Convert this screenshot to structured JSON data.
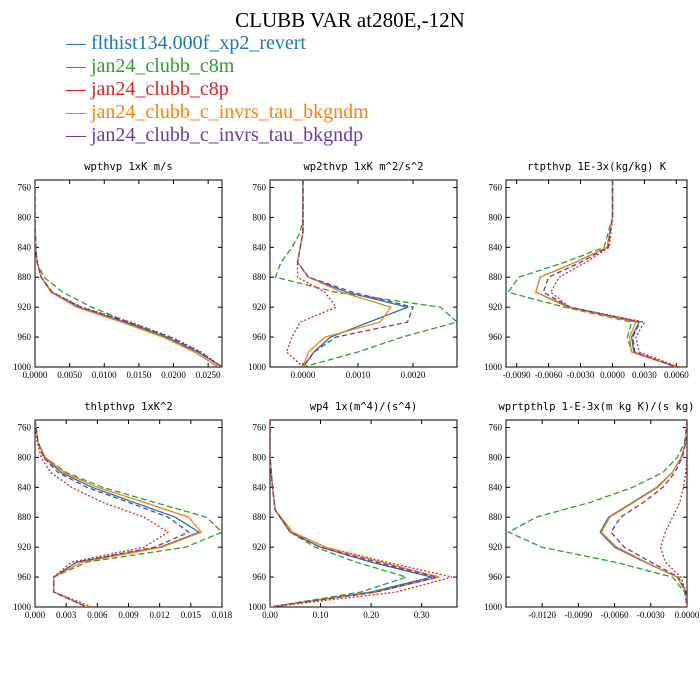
{
  "title": "CLUBB VAR at280E,-12N",
  "legend": [
    {
      "label": "flthist134.000f_xp2_revert",
      "color": "#1f77b4",
      "dash": ""
    },
    {
      "label": "jan24_clubb_c8m",
      "color": "#2ca02c",
      "dash": "6,3"
    },
    {
      "label": "jan24_clubb_c8p",
      "color": "#d62728",
      "dash": "2,2"
    },
    {
      "label": "jan24_clubb_c_invrs_tau_bkgndm",
      "color": "#ff7f0e",
      "dash": ""
    },
    {
      "label": "jan24_clubb_c_invrs_tau_bkgndp",
      "color": "#6a3d9a",
      "dash": "5,3"
    }
  ],
  "chart_data": [
    {
      "type": "line",
      "title": "wpthvp  1xK m/s",
      "xlim": [
        0,
        0.027
      ],
      "ylim": [
        1000,
        750
      ],
      "xticks": [
        0,
        0.005,
        0.01,
        0.015,
        0.02,
        0.025
      ],
      "xtick_labels": [
        "0.0000",
        "0.0050",
        "0.0100",
        "0.0150",
        "0.0200",
        "0.0250"
      ],
      "yticks": [
        760,
        800,
        840,
        880,
        920,
        960,
        1000
      ],
      "y": [
        750,
        800,
        840,
        860,
        880,
        900,
        920,
        940,
        960,
        980,
        1000
      ],
      "series": [
        {
          "x": [
            0,
            0,
            0.0001,
            0.0003,
            0.0009,
            0.0024,
            0.0064,
            0.013,
            0.019,
            0.0235,
            0.027
          ]
        },
        {
          "x": [
            0,
            0,
            0.0001,
            0.0003,
            0.0013,
            0.004,
            0.0082,
            0.0135,
            0.0188,
            0.023,
            0.0265
          ]
        },
        {
          "x": [
            0,
            0,
            0.0001,
            0.0003,
            0.0009,
            0.0025,
            0.0068,
            0.0138,
            0.0197,
            0.024,
            0.027
          ]
        },
        {
          "x": [
            0,
            0,
            0.0001,
            0.0003,
            0.0009,
            0.0023,
            0.006,
            0.0125,
            0.0185,
            0.023,
            0.0265
          ]
        },
        {
          "x": [
            0,
            0,
            0.0001,
            0.0003,
            0.0009,
            0.0025,
            0.0066,
            0.0135,
            0.0195,
            0.0238,
            0.027
          ]
        }
      ]
    },
    {
      "type": "line",
      "title": "wp2thvp  1xK m^2/s^2",
      "xlim": [
        -0.0006,
        0.0028
      ],
      "ylim": [
        1000,
        750
      ],
      "xticks": [
        0,
        0.001,
        0.002
      ],
      "xtick_labels": [
        "0.0000",
        "0.0010",
        "0.0020"
      ],
      "yticks": [
        760,
        800,
        840,
        880,
        920,
        960,
        1000
      ],
      "y": [
        750,
        800,
        820,
        840,
        860,
        880,
        900,
        920,
        940,
        960,
        980,
        1000
      ],
      "series": [
        {
          "x": [
            0,
            0,
            0,
            -5e-05,
            -0.0001,
            0.0001,
            0.0008,
            0.0019,
            0.0012,
            0.0005,
            0.0002,
            0
          ]
        },
        {
          "x": [
            0,
            0,
            -5e-05,
            -0.0002,
            -0.0004,
            -0.0005,
            0.0006,
            0.0025,
            0.0028,
            0.0018,
            0.001,
            0
          ]
        },
        {
          "x": [
            0,
            0,
            0,
            -5e-05,
            -0.0001,
            -0.0001,
            0.0004,
            0.0006,
            -5e-05,
            -0.0002,
            -0.0003,
            0
          ]
        },
        {
          "x": [
            0,
            0,
            0,
            -5e-05,
            -0.0001,
            0.0001,
            0.0007,
            0.0016,
            0.0014,
            0.0004,
            0.0001,
            0
          ]
        },
        {
          "x": [
            0,
            0,
            0,
            -5e-05,
            -0.0001,
            0.0001,
            0.0009,
            0.002,
            0.0019,
            0.0006,
            0.0002,
            0
          ]
        }
      ]
    },
    {
      "type": "line",
      "title": "rtpthvp  1E-3x(kg/kg) K",
      "xlim": [
        -0.01,
        0.007
      ],
      "ylim": [
        1000,
        750
      ],
      "xticks": [
        -0.009,
        -0.006,
        -0.003,
        0,
        0.003,
        0.006
      ],
      "xtick_labels": [
        "-0.0090",
        "-0.0060",
        "-0.0030",
        "0.0000",
        "0.0030",
        "0.0060"
      ],
      "yticks": [
        760,
        800,
        840,
        880,
        920,
        960,
        1000
      ],
      "y": [
        750,
        800,
        840,
        860,
        880,
        900,
        920,
        940,
        960,
        980,
        1000
      ],
      "series": [
        {
          "x": [
            0,
            0,
            -0.0005,
            -0.0035,
            -0.0068,
            -0.0072,
            -0.004,
            0.0025,
            0.0018,
            0.002,
            0.006
          ]
        },
        {
          "x": [
            0,
            0,
            -0.0008,
            -0.0045,
            -0.0088,
            -0.0098,
            -0.0045,
            0.0018,
            0.0014,
            0.0018,
            0.006
          ]
        },
        {
          "x": [
            0,
            0,
            -0.0003,
            -0.0025,
            -0.005,
            -0.0058,
            -0.004,
            0.003,
            0.0022,
            0.0025,
            0.0062
          ]
        },
        {
          "x": [
            0,
            0,
            -0.0005,
            -0.0035,
            -0.0068,
            -0.0072,
            -0.0042,
            0.0022,
            0.0016,
            0.0018,
            0.006
          ]
        },
        {
          "x": [
            0,
            0,
            -0.0004,
            -0.003,
            -0.006,
            -0.0065,
            -0.004,
            0.0026,
            0.0019,
            0.0021,
            0.006
          ]
        }
      ]
    },
    {
      "type": "line",
      "title": "thlpthvp  1xK^2",
      "xlim": [
        0,
        0.018
      ],
      "ylim": [
        1000,
        750
      ],
      "xticks": [
        0,
        0.003,
        0.006,
        0.009,
        0.012,
        0.015,
        0.018
      ],
      "xtick_labels": [
        "0.000",
        "0.003",
        "0.006",
        "0.009",
        "0.012",
        "0.015",
        "0.018"
      ],
      "yticks": [
        760,
        800,
        840,
        880,
        920,
        960,
        1000
      ],
      "y": [
        750,
        780,
        800,
        820,
        840,
        860,
        880,
        900,
        920,
        940,
        960,
        980,
        1000
      ],
      "series": [
        {
          "x": [
            0,
            0.0003,
            0.0009,
            0.0025,
            0.0055,
            0.0095,
            0.0135,
            0.0158,
            0.012,
            0.004,
            0.0018,
            0.0018,
            0.005
          ]
        },
        {
          "x": [
            0,
            0.0003,
            0.001,
            0.003,
            0.0065,
            0.0115,
            0.0165,
            0.018,
            0.0145,
            0.005,
            0.0018,
            0.0018,
            0.005
          ]
        },
        {
          "x": [
            0,
            0.0002,
            0.0006,
            0.0015,
            0.0035,
            0.0065,
            0.0105,
            0.0128,
            0.0105,
            0.0035,
            0.0018,
            0.0018,
            0.0055
          ]
        },
        {
          "x": [
            0,
            0.0003,
            0.001,
            0.0028,
            0.006,
            0.0105,
            0.0148,
            0.016,
            0.0122,
            0.0045,
            0.0018,
            0.0018,
            0.005
          ]
        },
        {
          "x": [
            0,
            0.0003,
            0.0008,
            0.0022,
            0.005,
            0.009,
            0.0128,
            0.0148,
            0.0115,
            0.004,
            0.0018,
            0.0018,
            0.005
          ]
        }
      ]
    },
    {
      "type": "line",
      "title": "wp4  1x(m^4)/(s^4)",
      "xlim": [
        0,
        0.37
      ],
      "ylim": [
        1000,
        750
      ],
      "xticks": [
        0,
        0.1,
        0.2,
        0.3
      ],
      "xtick_labels": [
        "0.00",
        "0.10",
        "0.20",
        "0.30"
      ],
      "yticks": [
        760,
        800,
        840,
        880,
        920,
        960,
        1000
      ],
      "y": [
        750,
        800,
        840,
        870,
        900,
        920,
        940,
        960,
        980,
        1000
      ],
      "series": [
        {
          "x": [
            0,
            0,
            0.005,
            0.01,
            0.04,
            0.1,
            0.2,
            0.32,
            0.2,
            0
          ]
        },
        {
          "x": [
            0,
            0,
            0.005,
            0.01,
            0.04,
            0.09,
            0.17,
            0.27,
            0.18,
            0
          ]
        },
        {
          "x": [
            0,
            0,
            0.005,
            0.01,
            0.045,
            0.11,
            0.23,
            0.36,
            0.25,
            0
          ]
        },
        {
          "x": [
            0,
            0,
            0.005,
            0.01,
            0.045,
            0.11,
            0.22,
            0.335,
            0.21,
            0
          ]
        },
        {
          "x": [
            0,
            0,
            0.005,
            0.01,
            0.04,
            0.1,
            0.21,
            0.33,
            0.21,
            0
          ]
        }
      ]
    },
    {
      "type": "line",
      "title": "wprtpthlp  1-E-3x(m kg K)/(s kg)",
      "xlim": [
        -0.015,
        0
      ],
      "ylim": [
        1000,
        750
      ],
      "xticks": [
        -0.012,
        -0.009,
        -0.006,
        -0.003,
        0
      ],
      "xtick_labels": [
        "-0.0120",
        "-0.0090",
        "-0.0060",
        "-0.0030",
        "0.0000"
      ],
      "yticks": [
        760,
        800,
        840,
        880,
        920,
        960,
        1000
      ],
      "y": [
        750,
        780,
        800,
        820,
        840,
        860,
        880,
        900,
        920,
        940,
        960,
        980,
        1000
      ],
      "series": [
        {
          "x": [
            0,
            -0.0001,
            -0.0005,
            -0.0012,
            -0.0025,
            -0.0045,
            -0.0065,
            -0.0072,
            -0.006,
            -0.0035,
            -0.0008,
            -0.0001,
            0
          ]
        },
        {
          "x": [
            0,
            -0.0002,
            -0.0008,
            -0.002,
            -0.0045,
            -0.008,
            -0.0125,
            -0.0148,
            -0.012,
            -0.006,
            -0.0012,
            -0.0002,
            0
          ]
        },
        {
          "x": [
            0,
            0,
            0,
            -0.0001,
            -0.0003,
            -0.0006,
            -0.0012,
            -0.0018,
            -0.0022,
            -0.0018,
            -0.0005,
            -0.0001,
            0
          ]
        },
        {
          "x": [
            0,
            -0.0001,
            -0.0005,
            -0.0012,
            -0.0024,
            -0.0044,
            -0.0064,
            -0.0071,
            -0.0058,
            -0.0034,
            -0.0008,
            -0.0001,
            0
          ]
        },
        {
          "x": [
            0,
            -0.0001,
            -0.0004,
            -0.001,
            -0.002,
            -0.0036,
            -0.0055,
            -0.0063,
            -0.0052,
            -0.003,
            -0.0007,
            -0.0001,
            0
          ]
        }
      ]
    }
  ]
}
